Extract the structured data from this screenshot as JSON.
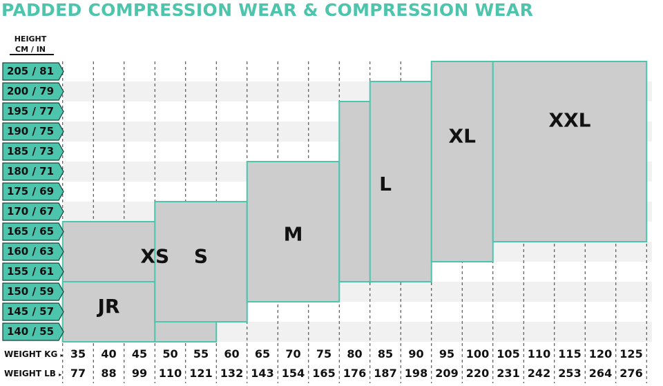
{
  "title": "PADDED COMPRESSION WEAR & COMPRESSION WEAR",
  "colors": {
    "accent": "#4dc4ac",
    "box_fill": "#cdcdcd",
    "stripe": "#f1f1f1"
  },
  "chart_data": {
    "type": "table",
    "y_axis": {
      "label_line1": "HEIGHT",
      "label_line2": "CM / IN",
      "ticks": [
        "205 / 81",
        "200 / 79",
        "195 / 77",
        "190 / 75",
        "185 / 73",
        "180 / 71",
        "175 / 69",
        "170 / 67",
        "165 / 65",
        "160 / 63",
        "155 / 61",
        "150 / 59",
        "145 / 57",
        "140 / 55"
      ]
    },
    "x_axis": {
      "kg_label": "WEIGHT KG",
      "lb_label": "WEIGHT LB",
      "kg_ticks": [
        "35",
        "40",
        "45",
        "50",
        "55",
        "60",
        "65",
        "70",
        "75",
        "80",
        "85",
        "90",
        "95",
        "100",
        "105",
        "110",
        "115",
        "120",
        "125"
      ],
      "lb_ticks": [
        "77",
        "88",
        "99",
        "110",
        "121",
        "132",
        "143",
        "154",
        "165",
        "176",
        "187",
        "198",
        "209",
        "220",
        "231",
        "242",
        "253",
        "264",
        "276"
      ]
    },
    "sizes": [
      {
        "name": "XS",
        "weight_kg": [
          35,
          55
        ],
        "height_cm": [
          140,
          165
        ]
      },
      {
        "name": "JR",
        "weight_kg": [
          35,
          45
        ],
        "height_cm": [
          140,
          150
        ]
      },
      {
        "name": "S",
        "weight_kg": [
          50,
          60
        ],
        "height_cm": [
          145,
          170
        ]
      },
      {
        "name": "M",
        "weight_kg": [
          65,
          75
        ],
        "height_cm": [
          150,
          180
        ]
      },
      {
        "name": "L",
        "weight_kg": [
          80,
          85
        ],
        "height_cm": [
          155,
          195
        ]
      },
      {
        "name": "L",
        "weight_kg": [
          85,
          90
        ],
        "height_cm": [
          155,
          200
        ]
      },
      {
        "name": "XL",
        "weight_kg": [
          95,
          100
        ],
        "height_cm": [
          160,
          205
        ]
      },
      {
        "name": "XXL",
        "weight_kg": [
          105,
          125
        ],
        "height_cm": [
          165,
          205
        ]
      }
    ]
  }
}
